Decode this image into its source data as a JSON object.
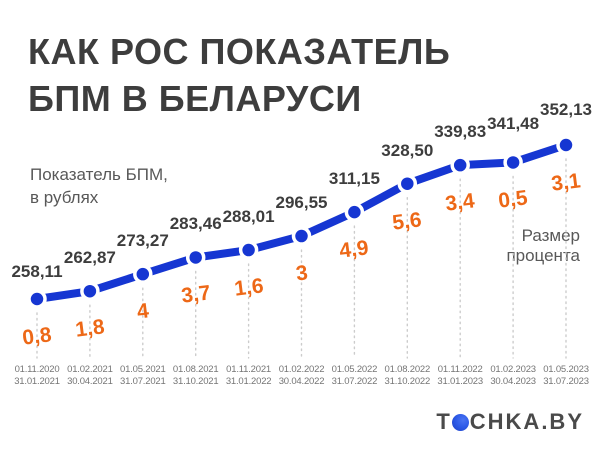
{
  "header": {
    "title_line1": "КАК РОС ПОКАЗАТЕЛЬ",
    "title_line2": "БПМ В БЕЛАРУСИ"
  },
  "labels": {
    "y_axis_line1": "Показатель БПМ,",
    "y_axis_line2": "в рублях",
    "secondary_line1": "Размер",
    "secondary_line2": "процента"
  },
  "logo": {
    "part1": "T",
    "part2": "CHKA.BY",
    "dot_icon": "blue-dot-icon"
  },
  "colors": {
    "line": "#1636d2",
    "dot": "#1636d2",
    "percent": "#ed6817",
    "value": "#3d3d3d",
    "title": "#3d3d3d",
    "subtitle": "#585858",
    "dates": "#757575",
    "dash": "#cccccc",
    "logo_text": "#4a4a4a",
    "logo_dot": "#2e5be8"
  },
  "chart_data": {
    "type": "line",
    "title": "КАК РОС ПОКАЗАТЕЛЬ БПМ В БЕЛАРУСИ",
    "ylabel": "Показатель БПМ, в рублях",
    "secondary_label": "Размер процента",
    "grid": false,
    "legend_position": "none",
    "x_labels": [
      [
        "01.11.2020",
        "31.01.2021"
      ],
      [
        "01.02.2021",
        "30.04.2021"
      ],
      [
        "01.05.2021",
        "31.07.2021"
      ],
      [
        "01.08.2021",
        "31.10.2021"
      ],
      [
        "01.11.2021",
        "31.01.2022"
      ],
      [
        "01.02.2022",
        "30.04.2022"
      ],
      [
        "01.05.2022",
        "31.07.2022"
      ],
      [
        "01.08.2022",
        "31.10.2022"
      ],
      [
        "01.11.2022",
        "31.01.2023"
      ],
      [
        "01.02.2023",
        "30.04.2023"
      ],
      [
        "01.05.2023",
        "31.07.2023"
      ]
    ],
    "values": [
      258.11,
      262.87,
      273.27,
      283.46,
      288.01,
      296.55,
      311.15,
      328.5,
      339.83,
      341.48,
      352.13
    ],
    "value_labels": [
      "258,11",
      "262,87",
      "273,27",
      "283,46",
      "288,01",
      "296,55",
      "311,15",
      "328,50",
      "339,83",
      "341,48",
      "352,13"
    ],
    "percent_labels": [
      "0,8",
      "1,8",
      "4",
      "3,7",
      "1,6",
      "3",
      "4,9",
      "5,6",
      "3,4",
      "0,5",
      "3,1"
    ],
    "ylim": [
      250,
      360
    ]
  }
}
